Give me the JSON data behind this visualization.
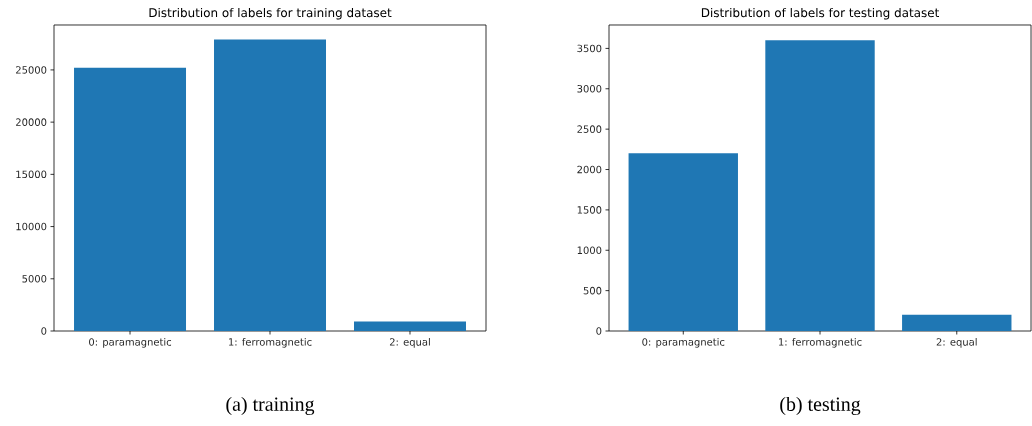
{
  "chart_data": [
    {
      "type": "bar",
      "title": "Distribution of labels for training dataset",
      "categories": [
        "0: paramagnetic",
        "1: ferromagnetic",
        "2: equal"
      ],
      "values": [
        25200,
        27900,
        900
      ],
      "color": "#1f77b4",
      "ylim": [
        0,
        29300
      ],
      "yticks": [
        0,
        5000,
        10000,
        15000,
        20000,
        25000
      ],
      "annotations": [
        "(a) training"
      ]
    },
    {
      "type": "bar",
      "title": "Distribution of labels for testing dataset",
      "categories": [
        "0: paramagnetic",
        "1: ferromagnetic",
        "2: equal"
      ],
      "values": [
        2200,
        3600,
        200
      ],
      "color": "#1f77b4",
      "ylim": [
        0,
        3790
      ],
      "yticks": [
        0,
        500,
        1000,
        1500,
        2000,
        2500,
        3000,
        3500
      ],
      "annotations": [
        "(b) testing"
      ]
    }
  ]
}
